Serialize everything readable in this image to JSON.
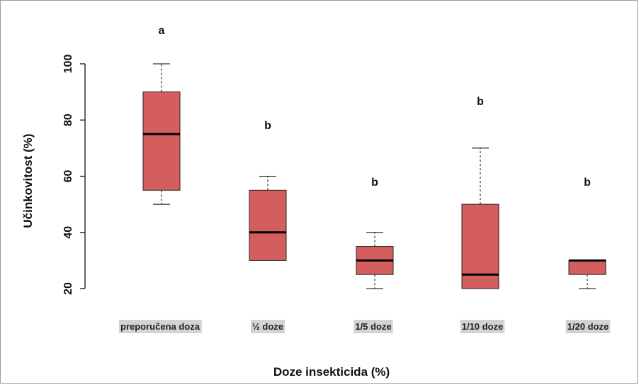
{
  "chart_data": {
    "type": "box",
    "xlabel": "Doze insekticida (%)",
    "ylabel": "Učinkovitost (%)",
    "ylim": [
      20,
      100
    ],
    "yticks": [
      20,
      40,
      60,
      80,
      100
    ],
    "colors": {
      "box_fill": "#d45d5d",
      "category_label_bg": "#d3d3d3"
    },
    "boxes": [
      {
        "category": "preporučena doza",
        "min": 50,
        "q1": 55,
        "median": 75,
        "q3": 90,
        "max": 100,
        "group_letter": "a"
      },
      {
        "category": "½ doze",
        "min": 30,
        "q1": 30,
        "median": 40,
        "q3": 55,
        "max": 60,
        "group_letter": "b"
      },
      {
        "category": "1/5 doze",
        "min": 20,
        "q1": 25,
        "median": 30,
        "q3": 35,
        "max": 40,
        "group_letter": "b"
      },
      {
        "category": "1/10 doze",
        "min": 20,
        "q1": 20,
        "median": 25,
        "q3": 50,
        "max": 70,
        "group_letter": "b"
      },
      {
        "category": "1/20 doze",
        "min": 20,
        "q1": 25,
        "median": 30,
        "q3": 30,
        "max": 30,
        "group_letter": "b"
      }
    ]
  }
}
